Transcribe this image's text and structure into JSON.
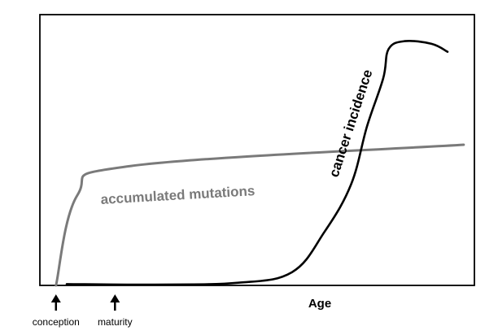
{
  "chart_data": {
    "type": "line",
    "title": "",
    "xlabel": "Age",
    "ylabel": "",
    "grid": false,
    "legend": "none",
    "series": [
      {
        "name": "accumulated mutations",
        "color": "#7a7a7a",
        "points": [
          [
            0,
            0
          ],
          [
            4,
            34
          ],
          [
            14,
            45
          ],
          [
            76,
            53
          ]
        ]
      },
      {
        "name": "cancer incidence",
        "color": "#000000",
        "points": [
          [
            2,
            0.5
          ],
          [
            18,
            0.3
          ],
          [
            34,
            1
          ],
          [
            44,
            5
          ],
          [
            50,
            20
          ],
          [
            55,
            38
          ],
          [
            58,
            60
          ],
          [
            61,
            78
          ],
          [
            62,
            89
          ],
          [
            65,
            92
          ],
          [
            70,
            91
          ],
          [
            73,
            88
          ]
        ]
      }
    ],
    "annotations": [
      {
        "text": "conception",
        "marker": "up-arrow",
        "x": 0
      },
      {
        "text": "maturity",
        "marker": "up-arrow",
        "x": 11
      }
    ],
    "xlim": [
      -3,
      78
    ],
    "ylim": [
      0,
      102
    ]
  }
}
